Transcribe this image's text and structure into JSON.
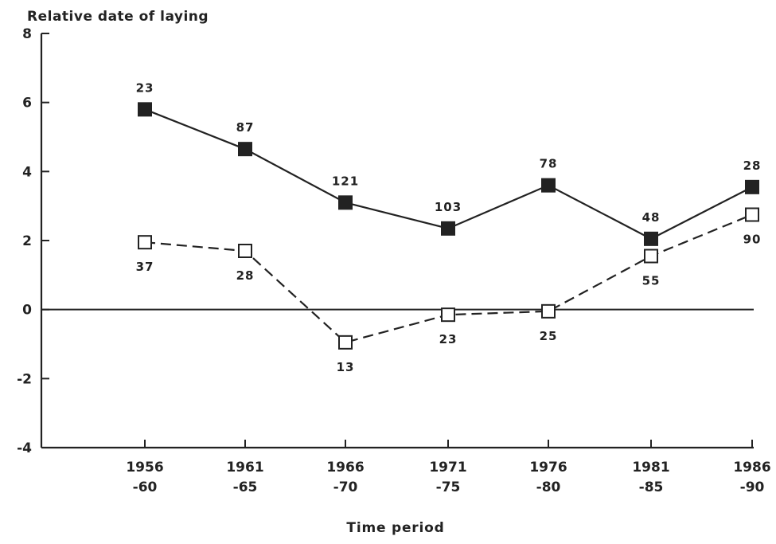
{
  "chart_data": {
    "type": "line",
    "ylabel": "Relative date of laying",
    "xlabel": "Time period",
    "ylim": [
      -4,
      8
    ],
    "yticks": [
      "8",
      "6",
      "4",
      "2",
      "0",
      "-2",
      "-4"
    ],
    "categories": [
      [
        "1956",
        "-60"
      ],
      [
        "1961",
        "-65"
      ],
      [
        "1966",
        "-70"
      ],
      [
        "1971",
        "-75"
      ],
      [
        "1976",
        "-80"
      ],
      [
        "1981",
        "-85"
      ],
      [
        "1986",
        "-90"
      ]
    ],
    "grid": false,
    "reference_line_y": 0,
    "series": [
      {
        "marker": "filled-square",
        "line_style": "solid",
        "values": [
          5.8,
          4.65,
          3.1,
          2.35,
          3.6,
          2.05,
          3.55
        ],
        "labels": [
          "23",
          "87",
          "121",
          "103",
          "78",
          "48",
          "28"
        ],
        "label_position": "above"
      },
      {
        "marker": "open-square",
        "line_style": "dashed",
        "values": [
          1.95,
          1.7,
          -0.95,
          -0.15,
          -0.05,
          1.55,
          2.75
        ],
        "labels": [
          "37",
          "28",
          "13",
          "23",
          "25",
          "55",
          "90"
        ],
        "label_position": "below"
      }
    ]
  }
}
